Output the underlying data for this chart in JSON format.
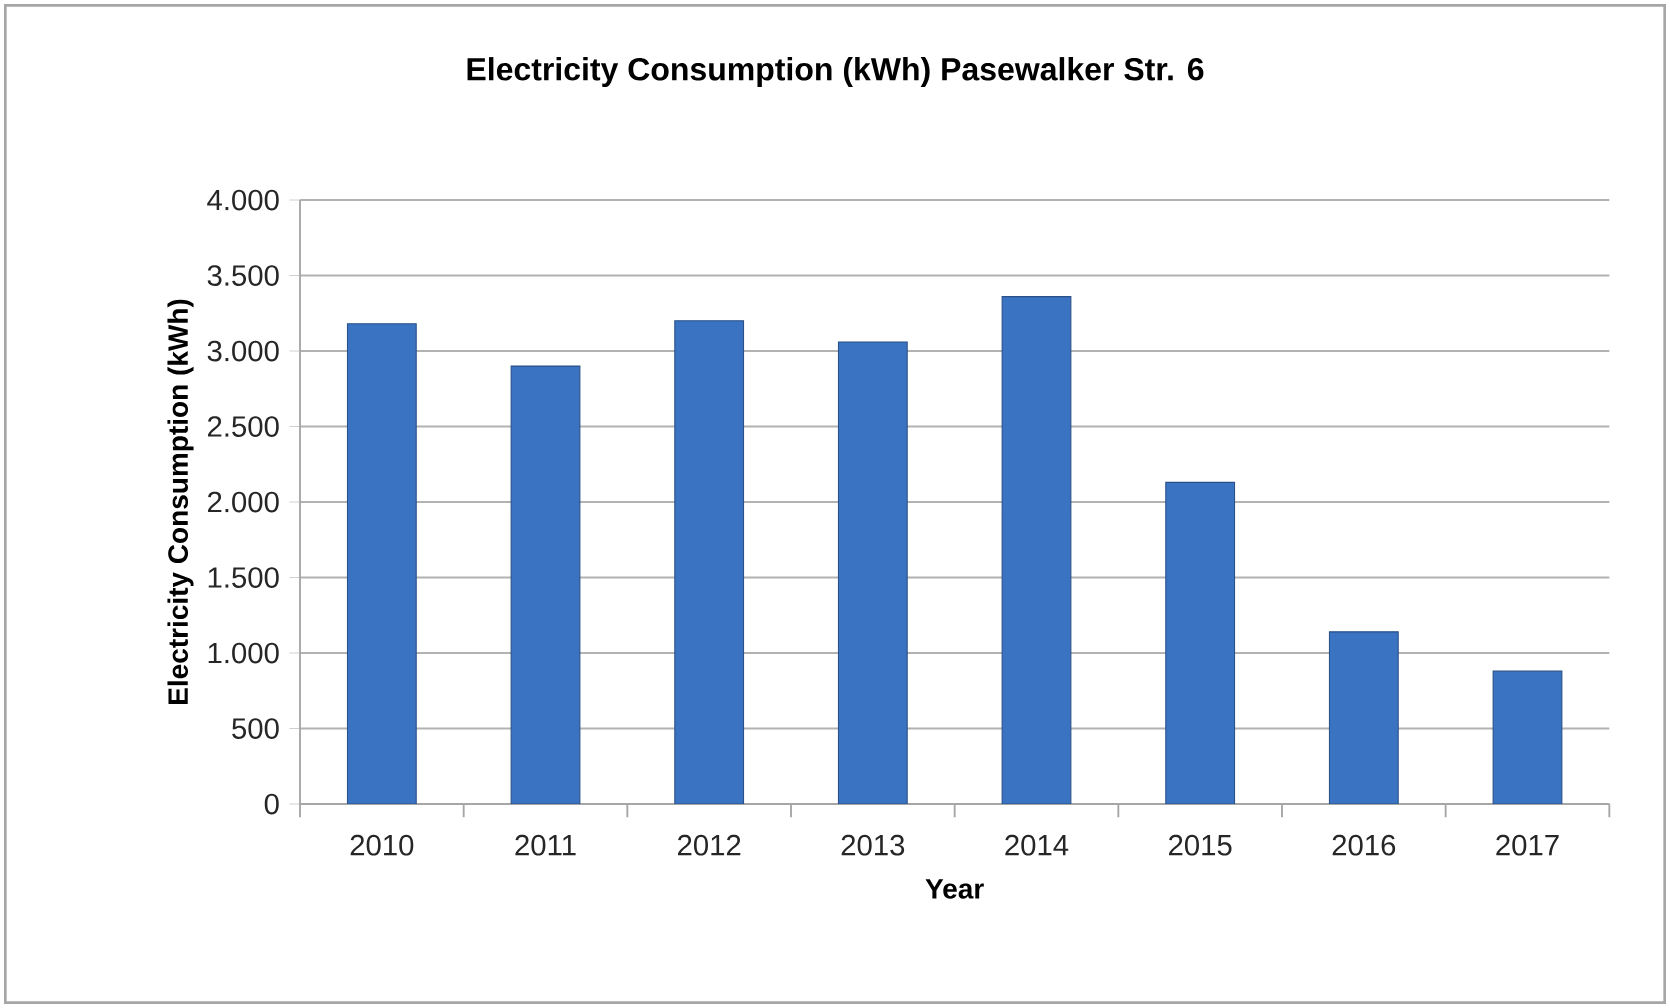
{
  "chart_data": {
    "type": "bar",
    "title": "Electricity Consumption (kWh) Pasewalker Str. 6",
    "xlabel": "Year",
    "ylabel": "Electricity Consumption (kWh)",
    "categories": [
      "2010",
      "2011",
      "2012",
      "2013",
      "2014",
      "2015",
      "2016",
      "2017"
    ],
    "values": [
      3180,
      2900,
      3200,
      3060,
      3360,
      2130,
      1140,
      880
    ],
    "color": "#3a73c2",
    "ylim": [
      0,
      4000
    ],
    "yticks": [
      0,
      500,
      {
        "value": 1000,
        "label": "1.000"
      },
      {
        "value": 1500,
        "label": "1.500"
      },
      {
        "value": 2000,
        "label": "2.000"
      },
      {
        "value": 2500,
        "label": "2.500"
      },
      {
        "value": 3000,
        "label": "3.000"
      },
      {
        "value": 3500,
        "label": "3.500"
      },
      {
        "value": 4000,
        "label": "4.000"
      }
    ],
    "grid": "y"
  }
}
